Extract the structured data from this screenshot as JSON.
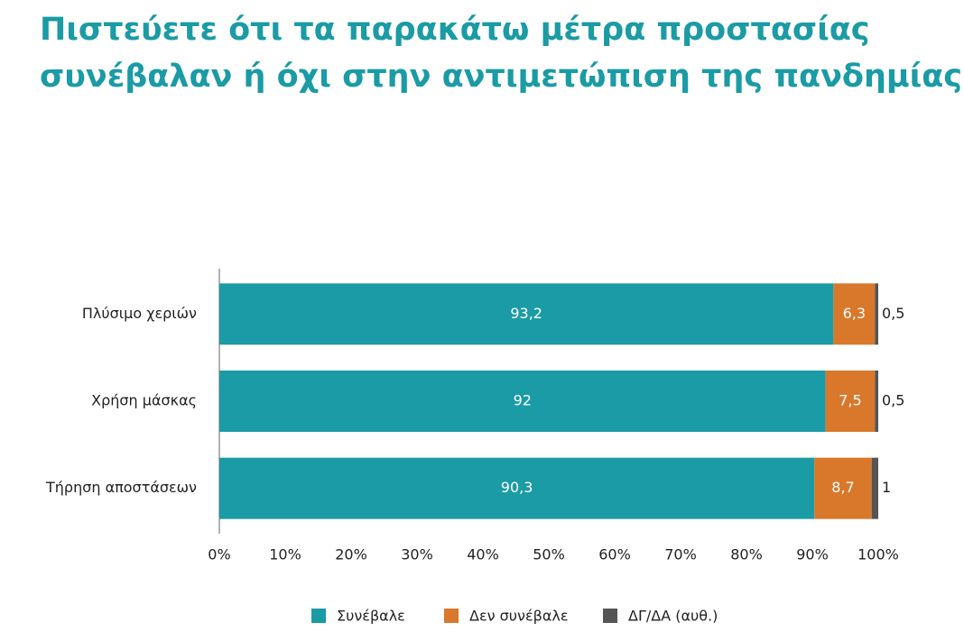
{
  "chart_data": {
    "type": "stacked_barh",
    "title": [
      "Πιστεύετε ότι τα παρακάτω μέτρα προστασίας",
      "συνέβαλαν ή όχι στην αντιμετώπιση της πανδημίας;"
    ],
    "categories": [
      "Πλύσιμο χεριών",
      "Χρήση μάσκας",
      "Τήρηση αποστάσεων"
    ],
    "series": [
      {
        "name": "Συνέβαλε",
        "color": "#1a9ba5",
        "values": [
          93.2,
          92,
          90.3
        ],
        "value_labels": [
          "93,2",
          "92",
          "90,3"
        ]
      },
      {
        "name": "Δεν συνέβαλε",
        "color": "#d9782b",
        "values": [
          6.3,
          7.5,
          8.7
        ],
        "value_labels": [
          "6,3",
          "7,5",
          "8,7"
        ]
      },
      {
        "name": "ΔΓ/ΔΑ (αυθ.)",
        "color": "#555555",
        "values": [
          0.5,
          0.5,
          1
        ],
        "value_labels": [
          "0,5",
          "0,5",
          "1"
        ]
      }
    ],
    "xlim": [
      0,
      100
    ],
    "xticks": [
      {
        "value": 0,
        "label": "0%"
      },
      {
        "value": 10,
        "label": "10%"
      },
      {
        "value": 20,
        "label": "20%"
      },
      {
        "value": 30,
        "label": "30%"
      },
      {
        "value": 40,
        "label": "40%"
      },
      {
        "value": 50,
        "label": "50%"
      },
      {
        "value": 60,
        "label": "60%"
      },
      {
        "value": 70,
        "label": "70%"
      },
      {
        "value": 80,
        "label": "80%"
      },
      {
        "value": 90,
        "label": "90%"
      },
      {
        "value": 100,
        "label": "100%"
      }
    ],
    "legend": "bottom"
  }
}
